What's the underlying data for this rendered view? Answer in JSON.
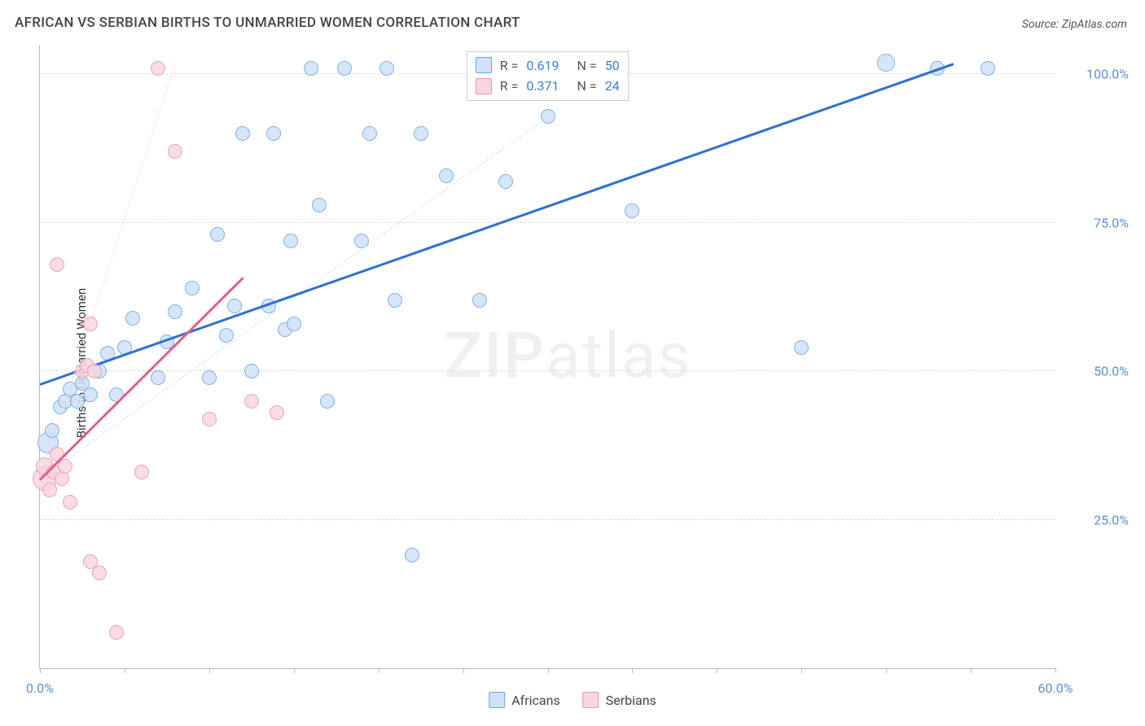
{
  "title": "AFRICAN VS SERBIAN BIRTHS TO UNMARRIED WOMEN CORRELATION CHART",
  "source": "Source: ZipAtlas.com",
  "y_axis_label": "Births to Unmarried Women",
  "watermark_left": "ZIP",
  "watermark_right": "atlas",
  "chart": {
    "type": "scatter",
    "xlim": [
      0,
      60
    ],
    "ylim": [
      0,
      105
    ],
    "x_ticks": [
      0,
      5,
      10,
      15,
      20,
      25,
      30,
      35,
      40,
      45,
      50,
      55,
      60
    ],
    "x_tick_labels": {
      "0": "0.0%",
      "60": "60.0%"
    },
    "y_ticks": [
      25,
      50,
      75,
      100
    ],
    "y_tick_labels": [
      "25.0%",
      "50.0%",
      "75.0%",
      "100.0%"
    ],
    "grid_color": "#dddddd",
    "axis_color": "#bbbbbb",
    "background_color": "#ffffff",
    "tick_label_color": "#5a8fd6",
    "series": [
      {
        "name": "Africans",
        "fill": "#cfe2f8",
        "stroke": "#6fa3e0",
        "marker_radius": 9,
        "trend_color": "#2f6fd0",
        "trend_width": 3,
        "trend": {
          "x1": 0,
          "y1": 48,
          "x2": 54,
          "y2": 102
        },
        "trend_dash_color": "#cfe2f8",
        "trend_dash": {
          "x1": 0,
          "y1": 32,
          "x2": 30,
          "y2": 93
        },
        "R": "0.619",
        "N": "50",
        "points": [
          {
            "x": 0.5,
            "y": 38,
            "r": 13
          },
          {
            "x": 0.7,
            "y": 40,
            "r": 9
          },
          {
            "x": 1.2,
            "y": 44,
            "r": 9
          },
          {
            "x": 1.5,
            "y": 45,
            "r": 9
          },
          {
            "x": 1.8,
            "y": 47,
            "r": 9
          },
          {
            "x": 2.2,
            "y": 45,
            "r": 9
          },
          {
            "x": 2.5,
            "y": 48,
            "r": 9
          },
          {
            "x": 3.0,
            "y": 46,
            "r": 9
          },
          {
            "x": 3.5,
            "y": 50,
            "r": 9
          },
          {
            "x": 4.0,
            "y": 53,
            "r": 9
          },
          {
            "x": 4.5,
            "y": 46,
            "r": 9
          },
          {
            "x": 5.0,
            "y": 54,
            "r": 9
          },
          {
            "x": 5.5,
            "y": 59,
            "r": 9
          },
          {
            "x": 7.0,
            "y": 49,
            "r": 9
          },
          {
            "x": 7.5,
            "y": 55,
            "r": 9
          },
          {
            "x": 8.0,
            "y": 60,
            "r": 9
          },
          {
            "x": 9.0,
            "y": 64,
            "r": 9
          },
          {
            "x": 10.0,
            "y": 49,
            "r": 9
          },
          {
            "x": 10.5,
            "y": 73,
            "r": 9
          },
          {
            "x": 11.0,
            "y": 56,
            "r": 9
          },
          {
            "x": 11.5,
            "y": 61,
            "r": 9
          },
          {
            "x": 12.0,
            "y": 90,
            "r": 9
          },
          {
            "x": 12.5,
            "y": 50,
            "r": 9
          },
          {
            "x": 13.5,
            "y": 61,
            "r": 9
          },
          {
            "x": 13.8,
            "y": 90,
            "r": 9
          },
          {
            "x": 14.5,
            "y": 57,
            "r": 9
          },
          {
            "x": 14.8,
            "y": 72,
            "r": 9
          },
          {
            "x": 15.0,
            "y": 58,
            "r": 9
          },
          {
            "x": 16.0,
            "y": 101,
            "r": 9
          },
          {
            "x": 16.5,
            "y": 78,
            "r": 9
          },
          {
            "x": 17.0,
            "y": 45,
            "r": 9
          },
          {
            "x": 18.0,
            "y": 101,
            "r": 9
          },
          {
            "x": 19.0,
            "y": 72,
            "r": 9
          },
          {
            "x": 19.5,
            "y": 90,
            "r": 9
          },
          {
            "x": 20.5,
            "y": 101,
            "r": 9
          },
          {
            "x": 21.0,
            "y": 62,
            "r": 9
          },
          {
            "x": 22.0,
            "y": 19,
            "r": 9
          },
          {
            "x": 22.5,
            "y": 90,
            "r": 9
          },
          {
            "x": 24.0,
            "y": 83,
            "r": 9
          },
          {
            "x": 26.0,
            "y": 62,
            "r": 9
          },
          {
            "x": 27.5,
            "y": 82,
            "r": 9
          },
          {
            "x": 29.5,
            "y": 101,
            "r": 9
          },
          {
            "x": 30.0,
            "y": 93,
            "r": 9
          },
          {
            "x": 32.5,
            "y": 101,
            "r": 11
          },
          {
            "x": 35.0,
            "y": 77,
            "r": 9
          },
          {
            "x": 45.0,
            "y": 54,
            "r": 9
          },
          {
            "x": 50.0,
            "y": 102,
            "r": 11
          },
          {
            "x": 53.0,
            "y": 101,
            "r": 9
          },
          {
            "x": 56.0,
            "y": 101,
            "r": 9
          }
        ]
      },
      {
        "name": "Serbians",
        "fill": "#f8d6e0",
        "stroke": "#e594b0",
        "marker_radius": 9,
        "trend_color": "#e35d8a",
        "trend_width": 3,
        "trend": {
          "x1": 0,
          "y1": 32,
          "x2": 12,
          "y2": 66
        },
        "trend_dash_color": "#f8d6e0",
        "trend_dash": {
          "x1": 0,
          "y1": 32,
          "x2": 8,
          "y2": 102
        },
        "R": "0.371",
        "N": "24",
        "points": [
          {
            "x": 0.3,
            "y": 32,
            "r": 15
          },
          {
            "x": 0.3,
            "y": 34,
            "r": 11
          },
          {
            "x": 0.6,
            "y": 30,
            "r": 9
          },
          {
            "x": 0.8,
            "y": 33,
            "r": 9
          },
          {
            "x": 1.0,
            "y": 36,
            "r": 9
          },
          {
            "x": 1.0,
            "y": 68,
            "r": 9
          },
          {
            "x": 1.3,
            "y": 32,
            "r": 9
          },
          {
            "x": 1.5,
            "y": 34,
            "r": 9
          },
          {
            "x": 1.8,
            "y": 28,
            "r": 9
          },
          {
            "x": 2.5,
            "y": 50,
            "r": 9
          },
          {
            "x": 2.8,
            "y": 51,
            "r": 9
          },
          {
            "x": 3.0,
            "y": 18,
            "r": 9
          },
          {
            "x": 3.0,
            "y": 58,
            "r": 9
          },
          {
            "x": 3.2,
            "y": 50,
            "r": 9
          },
          {
            "x": 3.5,
            "y": 16,
            "r": 9
          },
          {
            "x": 4.5,
            "y": 6,
            "r": 9
          },
          {
            "x": 6.0,
            "y": 33,
            "r": 9
          },
          {
            "x": 7.0,
            "y": 101,
            "r": 9
          },
          {
            "x": 8.0,
            "y": 87,
            "r": 9
          },
          {
            "x": 10.0,
            "y": 42,
            "r": 9
          },
          {
            "x": 12.5,
            "y": 45,
            "r": 9
          },
          {
            "x": 14.0,
            "y": 43,
            "r": 9
          }
        ]
      }
    ]
  },
  "legend_corr_pos": {
    "left_pct": 42,
    "top_pct": 1
  },
  "bottom_legend": [
    "Africans",
    "Serbians"
  ]
}
